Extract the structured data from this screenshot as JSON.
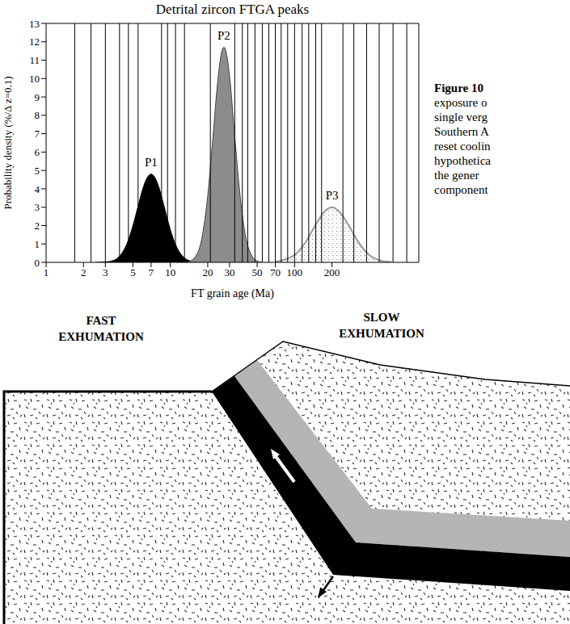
{
  "chart_data": {
    "type": "area",
    "title": "Detrital zircon FTGA peaks",
    "x_label": "FT grain age (Ma)",
    "y_label": "Probability density (%/Δ z=0.1)",
    "log": "x",
    "grid": false,
    "xlim": [
      1,
      1000
    ],
    "xticks": [
      1,
      2,
      3,
      5,
      7,
      10,
      20,
      30,
      50,
      70,
      100,
      200
    ],
    "ylim": [
      0,
      13
    ],
    "yticks": [
      0,
      1,
      2,
      3,
      4,
      5,
      6,
      7,
      8,
      9,
      10,
      11,
      12,
      13
    ],
    "series": [
      {
        "name": "P1",
        "color": "#000000",
        "x": [
          2.5,
          3,
          3.5,
          4,
          4.5,
          5,
          5.5,
          6,
          6.5,
          7,
          7.5,
          8,
          9,
          10,
          11,
          12,
          13,
          15,
          17
        ],
        "values": [
          0,
          0.02,
          0.11,
          0.42,
          1.05,
          2.0,
          3.05,
          4.0,
          4.6,
          4.8,
          4.63,
          4.18,
          2.94,
          1.78,
          0.98,
          0.5,
          0.24,
          0.05,
          0
        ]
      },
      {
        "name": "P2",
        "color": "#8c8c8c",
        "x": [
          14,
          16,
          18,
          20,
          22,
          24,
          26,
          27,
          28,
          30,
          33,
          36,
          40,
          45,
          50,
          55
        ],
        "values": [
          0.04,
          0.33,
          1.37,
          3.63,
          6.76,
          9.77,
          11.5,
          11.7,
          11.5,
          10.1,
          6.85,
          3.97,
          1.55,
          0.39,
          0.08,
          0
        ]
      },
      {
        "name": "P3",
        "color": "#9a9a9a",
        "x": [
          70,
          100,
          120,
          150,
          175,
          200,
          230,
          270,
          320,
          400,
          500,
          600
        ],
        "values": [
          0.03,
          0.4,
          1.0,
          2.12,
          2.78,
          3.0,
          2.75,
          2.06,
          1.19,
          0.4,
          0.09,
          0.02
        ]
      }
    ],
    "grain_ages": [
      1.7,
      2.3,
      3,
      3.9,
      4.6,
      5.5,
      8.5,
      9.5,
      11,
      13,
      21,
      33,
      38,
      42,
      48,
      55,
      62,
      70,
      78,
      88,
      100,
      115,
      130,
      148,
      165,
      245,
      300,
      380,
      480,
      620,
      800
    ]
  },
  "caption": {
    "lines": [
      "Figure 10",
      "exposure o",
      "single verg",
      "Southern A",
      "reset coolin",
      "hypothetica",
      "the gener",
      "component"
    ]
  },
  "diagram": {
    "fast_label": [
      "FAST",
      "EXHUMATION"
    ],
    "slow_label": [
      "SLOW",
      "EXHUMATION"
    ]
  }
}
